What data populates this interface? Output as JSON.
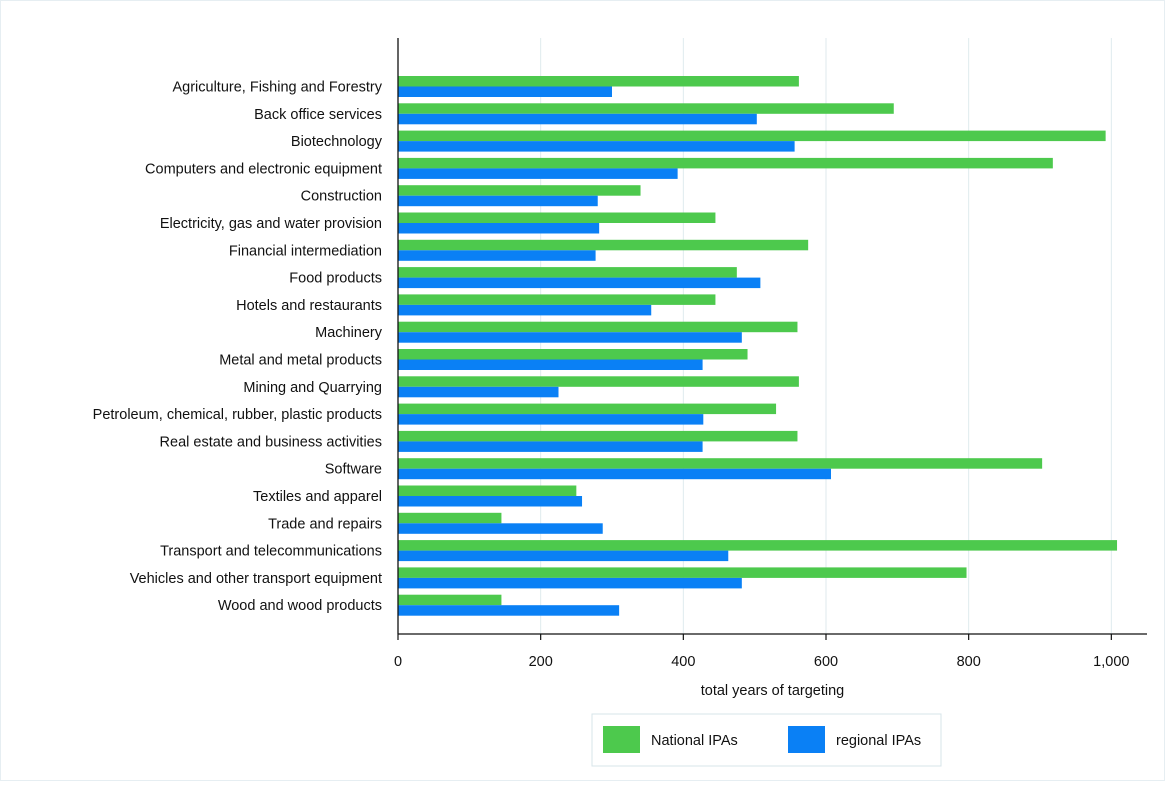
{
  "chart_data": {
    "type": "bar",
    "orientation": "horizontal",
    "title": "",
    "xlabel": "total years of targeting",
    "ylabel": "",
    "xlim": [
      0,
      1050
    ],
    "x_ticks": [
      0,
      200,
      400,
      600,
      800,
      1000
    ],
    "x_tick_labels": [
      "0",
      "200",
      "400",
      "600",
      "800",
      "1,000"
    ],
    "grid": "vertical",
    "legend_position": "bottom-center",
    "categories": [
      "Agriculture, Fishing and Forestry",
      "Back office services",
      "Biotechnology",
      "Computers and electronic equipment",
      "Construction",
      "Electricity, gas and water provision",
      "Financial intermediation",
      "Food products",
      "Hotels and restaurants",
      "Machinery",
      "Metal and metal products",
      "Mining and Quarrying",
      "Petroleum, chemical, rubber, plastic products",
      "Real estate and business activities",
      "Software",
      "Textiles and apparel",
      "Trade and repairs",
      "Transport and telecommunications",
      "Vehicles and other transport equipment",
      "Wood and wood products"
    ],
    "series": [
      {
        "name": "National IPAs",
        "color": "#4dc94d",
        "values": [
          562,
          695,
          992,
          918,
          340,
          445,
          575,
          475,
          445,
          560,
          490,
          562,
          530,
          560,
          903,
          250,
          145,
          1008,
          797,
          145
        ]
      },
      {
        "name": "regional IPAs",
        "color": "#0a80f5",
        "values": [
          300,
          503,
          556,
          392,
          280,
          282,
          277,
          508,
          355,
          482,
          427,
          225,
          428,
          427,
          607,
          258,
          287,
          463,
          482,
          310
        ]
      }
    ]
  }
}
